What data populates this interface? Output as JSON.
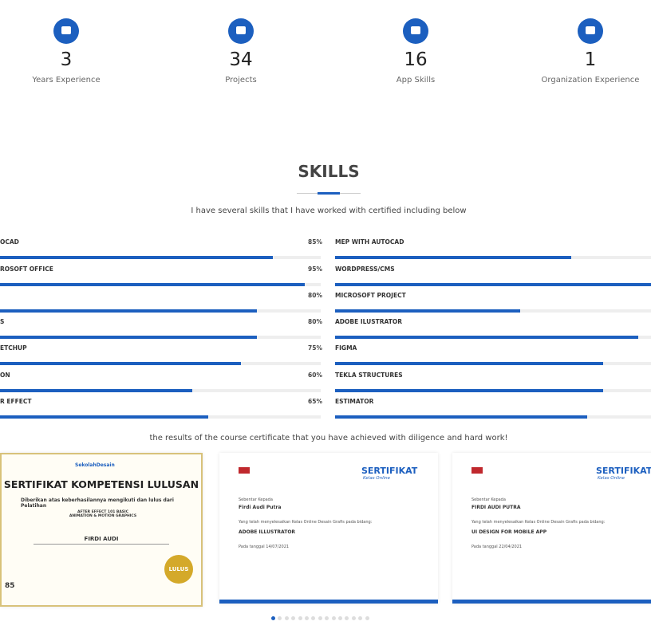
{
  "stats": [
    {
      "value": 3,
      "label": "Years Experience"
    },
    {
      "value": 34,
      "label": "Projects"
    },
    {
      "value": 16,
      "label": "App Skills"
    },
    {
      "value": 1,
      "label": "Organization Experience"
    }
  ],
  "skills": {
    "title": "SKILLS",
    "subtitle": "I have several skills that I have worked with certified including below",
    "left": [
      {
        "name": "OCAD",
        "value": 85,
        "label": "85%"
      },
      {
        "name": "ROSOFT OFFICE",
        "value": 95,
        "label": "95%"
      },
      {
        "value": 80,
        "label": "80%"
      },
      {
        "name": "S",
        "value": 80,
        "label": "80%"
      },
      {
        "name": "ETCHUP",
        "value": 75,
        "label": "75%"
      },
      {
        "name": "ON",
        "value": 60,
        "label": "60%"
      },
      {
        "name": "R EFFECT",
        "value": 65,
        "label": "65%"
      }
    ],
    "right": [
      {
        "name": "MEP WITH AUTOCAD",
        "value": 74
      },
      {
        "name": "WORDPRESS/CMS",
        "value": 100
      },
      {
        "name": "MICROSOFT PROJECT",
        "value": 58
      },
      {
        "name": "ADOBE ILUSTRATOR",
        "value": 95
      },
      {
        "name": "FIGMA",
        "value": 84
      },
      {
        "name": "TEKLA STRUCTURES",
        "value": 84
      },
      {
        "name": "ESTIMATOR",
        "value": 79
      }
    ]
  },
  "certificates": {
    "subtitle": "the results of the course certificate that you have achieved with diligence and hard work!",
    "items": [
      {
        "brand": "SekolahDesain",
        "title": "SERTIFIKAT KOMPETENSI LULUSAN",
        "text": "Diberikan atas keberhasilannya mengikuti dan lulus dari Pelatihan",
        "course": "AFTER EFFECT 101 BASIC ANIMATION & MOTION GRAPHICS",
        "name": "FIRDI AUDI",
        "badge": "LULUS",
        "score": "85"
      },
      {
        "title": "SERTIFIKAT",
        "subtitle": "Kelas Online",
        "to": "Sebentar Kepada",
        "name": "Firdi Audi Putra",
        "text": "Yang telah menyelesaikan Kelas Online Desain Grafis pada bidang:",
        "course": "ADOBE ILLUSTRATOR",
        "date": "Pada tanggal 14/07/2021"
      },
      {
        "title": "SERTIFIKAT",
        "subtitle": "Kelas Online",
        "to": "Sebentar Kepada",
        "name": "FIRDI AUDI PUTRA",
        "text": "Yang telah menyelesaikan Kelas Online Desain Grafis pada bidang:",
        "course": "UI DESIGN FOR MOBILE APP",
        "date": "Pada tanggal 22/04/2021"
      }
    ]
  }
}
